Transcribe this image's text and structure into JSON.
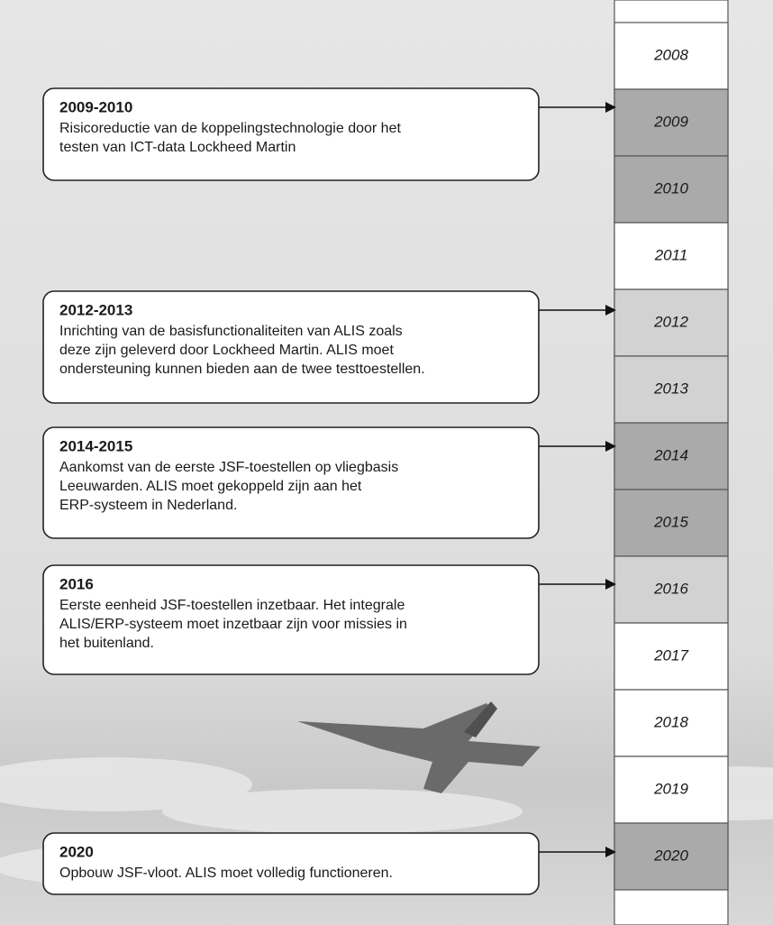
{
  "timeline": {
    "years": [
      {
        "label": "2008",
        "fill": "#ffffff"
      },
      {
        "label": "2009",
        "fill": "#aaaaaa"
      },
      {
        "label": "2010",
        "fill": "#aaaaaa"
      },
      {
        "label": "2011",
        "fill": "#ffffff"
      },
      {
        "label": "2012",
        "fill": "#d2d2d2"
      },
      {
        "label": "2013",
        "fill": "#d2d2d2"
      },
      {
        "label": "2014",
        "fill": "#aaaaaa"
      },
      {
        "label": "2015",
        "fill": "#aaaaaa"
      },
      {
        "label": "2016",
        "fill": "#d2d2d2"
      },
      {
        "label": "2017",
        "fill": "#ffffff"
      },
      {
        "label": "2018",
        "fill": "#ffffff"
      },
      {
        "label": "2019",
        "fill": "#ffffff"
      },
      {
        "label": "2020",
        "fill": "#aaaaaa"
      }
    ],
    "events": [
      {
        "title": "2009-2010",
        "lines": [
          "Risicoreductie van de koppelingstechnologie door het",
          "testen van ICT-data Lockheed Martin"
        ]
      },
      {
        "title": "2012-2013",
        "lines": [
          "Inrichting van de basisfunctionaliteiten van ALIS zoals",
          "deze zijn geleverd door Lockheed Martin. ALIS moet",
          "ondersteuning kunnen bieden aan de twee testtoestellen."
        ]
      },
      {
        "title": "2014-2015",
        "lines": [
          "Aankomst van de eerste JSF-toestellen op vliegbasis",
          "Leeuwarden. ALIS moet gekoppeld zijn aan het",
          "ERP-systeem in Nederland."
        ]
      },
      {
        "title": "2016",
        "lines": [
          "Eerste eenheid JSF-toestellen inzetbaar. Het integrale",
          "ALIS/ERP-systeem moet inzetbaar zijn voor missies in",
          "het buitenland."
        ]
      },
      {
        "title": "2020",
        "lines": [
          "Opbouw JSF-vloot. ALIS moet volledig functioneren."
        ]
      }
    ]
  }
}
